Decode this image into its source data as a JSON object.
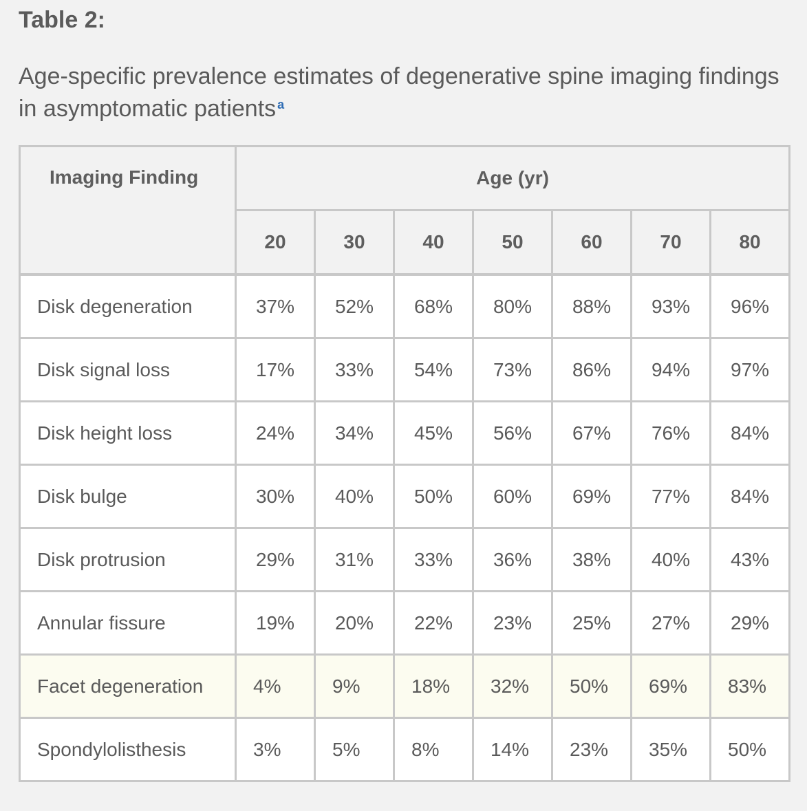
{
  "table_label": "Table 2:",
  "caption": "Age-specific prevalence estimates of degenerative spine imaging findings in asymptomatic patients",
  "caption_footnote_marker": "a",
  "header": {
    "finding_label": "Imaging Finding",
    "age_label": "Age (yr)",
    "ages": [
      "20",
      "30",
      "40",
      "50",
      "60",
      "70",
      "80"
    ]
  },
  "rows": [
    {
      "finding": "Disk degeneration",
      "values": [
        "37%",
        "52%",
        "68%",
        "80%",
        "88%",
        "93%",
        "96%"
      ]
    },
    {
      "finding": "Disk signal loss",
      "values": [
        "17%",
        "33%",
        "54%",
        "73%",
        "86%",
        "94%",
        "97%"
      ]
    },
    {
      "finding": "Disk height loss",
      "values": [
        "24%",
        "34%",
        "45%",
        "56%",
        "67%",
        "76%",
        "84%"
      ]
    },
    {
      "finding": "Disk bulge",
      "values": [
        "30%",
        "40%",
        "50%",
        "60%",
        "69%",
        "77%",
        "84%"
      ]
    },
    {
      "finding": "Disk protrusion",
      "values": [
        "29%",
        "31%",
        "33%",
        "36%",
        "38%",
        "40%",
        "43%"
      ]
    },
    {
      "finding": "Annular fissure",
      "values": [
        "19%",
        "20%",
        "22%",
        "23%",
        "25%",
        "27%",
        "29%"
      ]
    },
    {
      "finding": "Facet degeneration",
      "values": [
        "4%",
        "9%",
        "18%",
        "32%",
        "50%",
        "69%",
        "83%"
      ]
    },
    {
      "finding": "Spondylolisthesis",
      "values": [
        "3%",
        "5%",
        "8%",
        "14%",
        "23%",
        "35%",
        "50%"
      ]
    }
  ],
  "highlighted_row": "Facet degeneration",
  "colors": {
    "background": "#f2f2f2",
    "border": "#c8c8c8",
    "highlight_row": "#fcfcf0",
    "footnote_link": "#2f6db5",
    "text": "#5a5a5a"
  }
}
